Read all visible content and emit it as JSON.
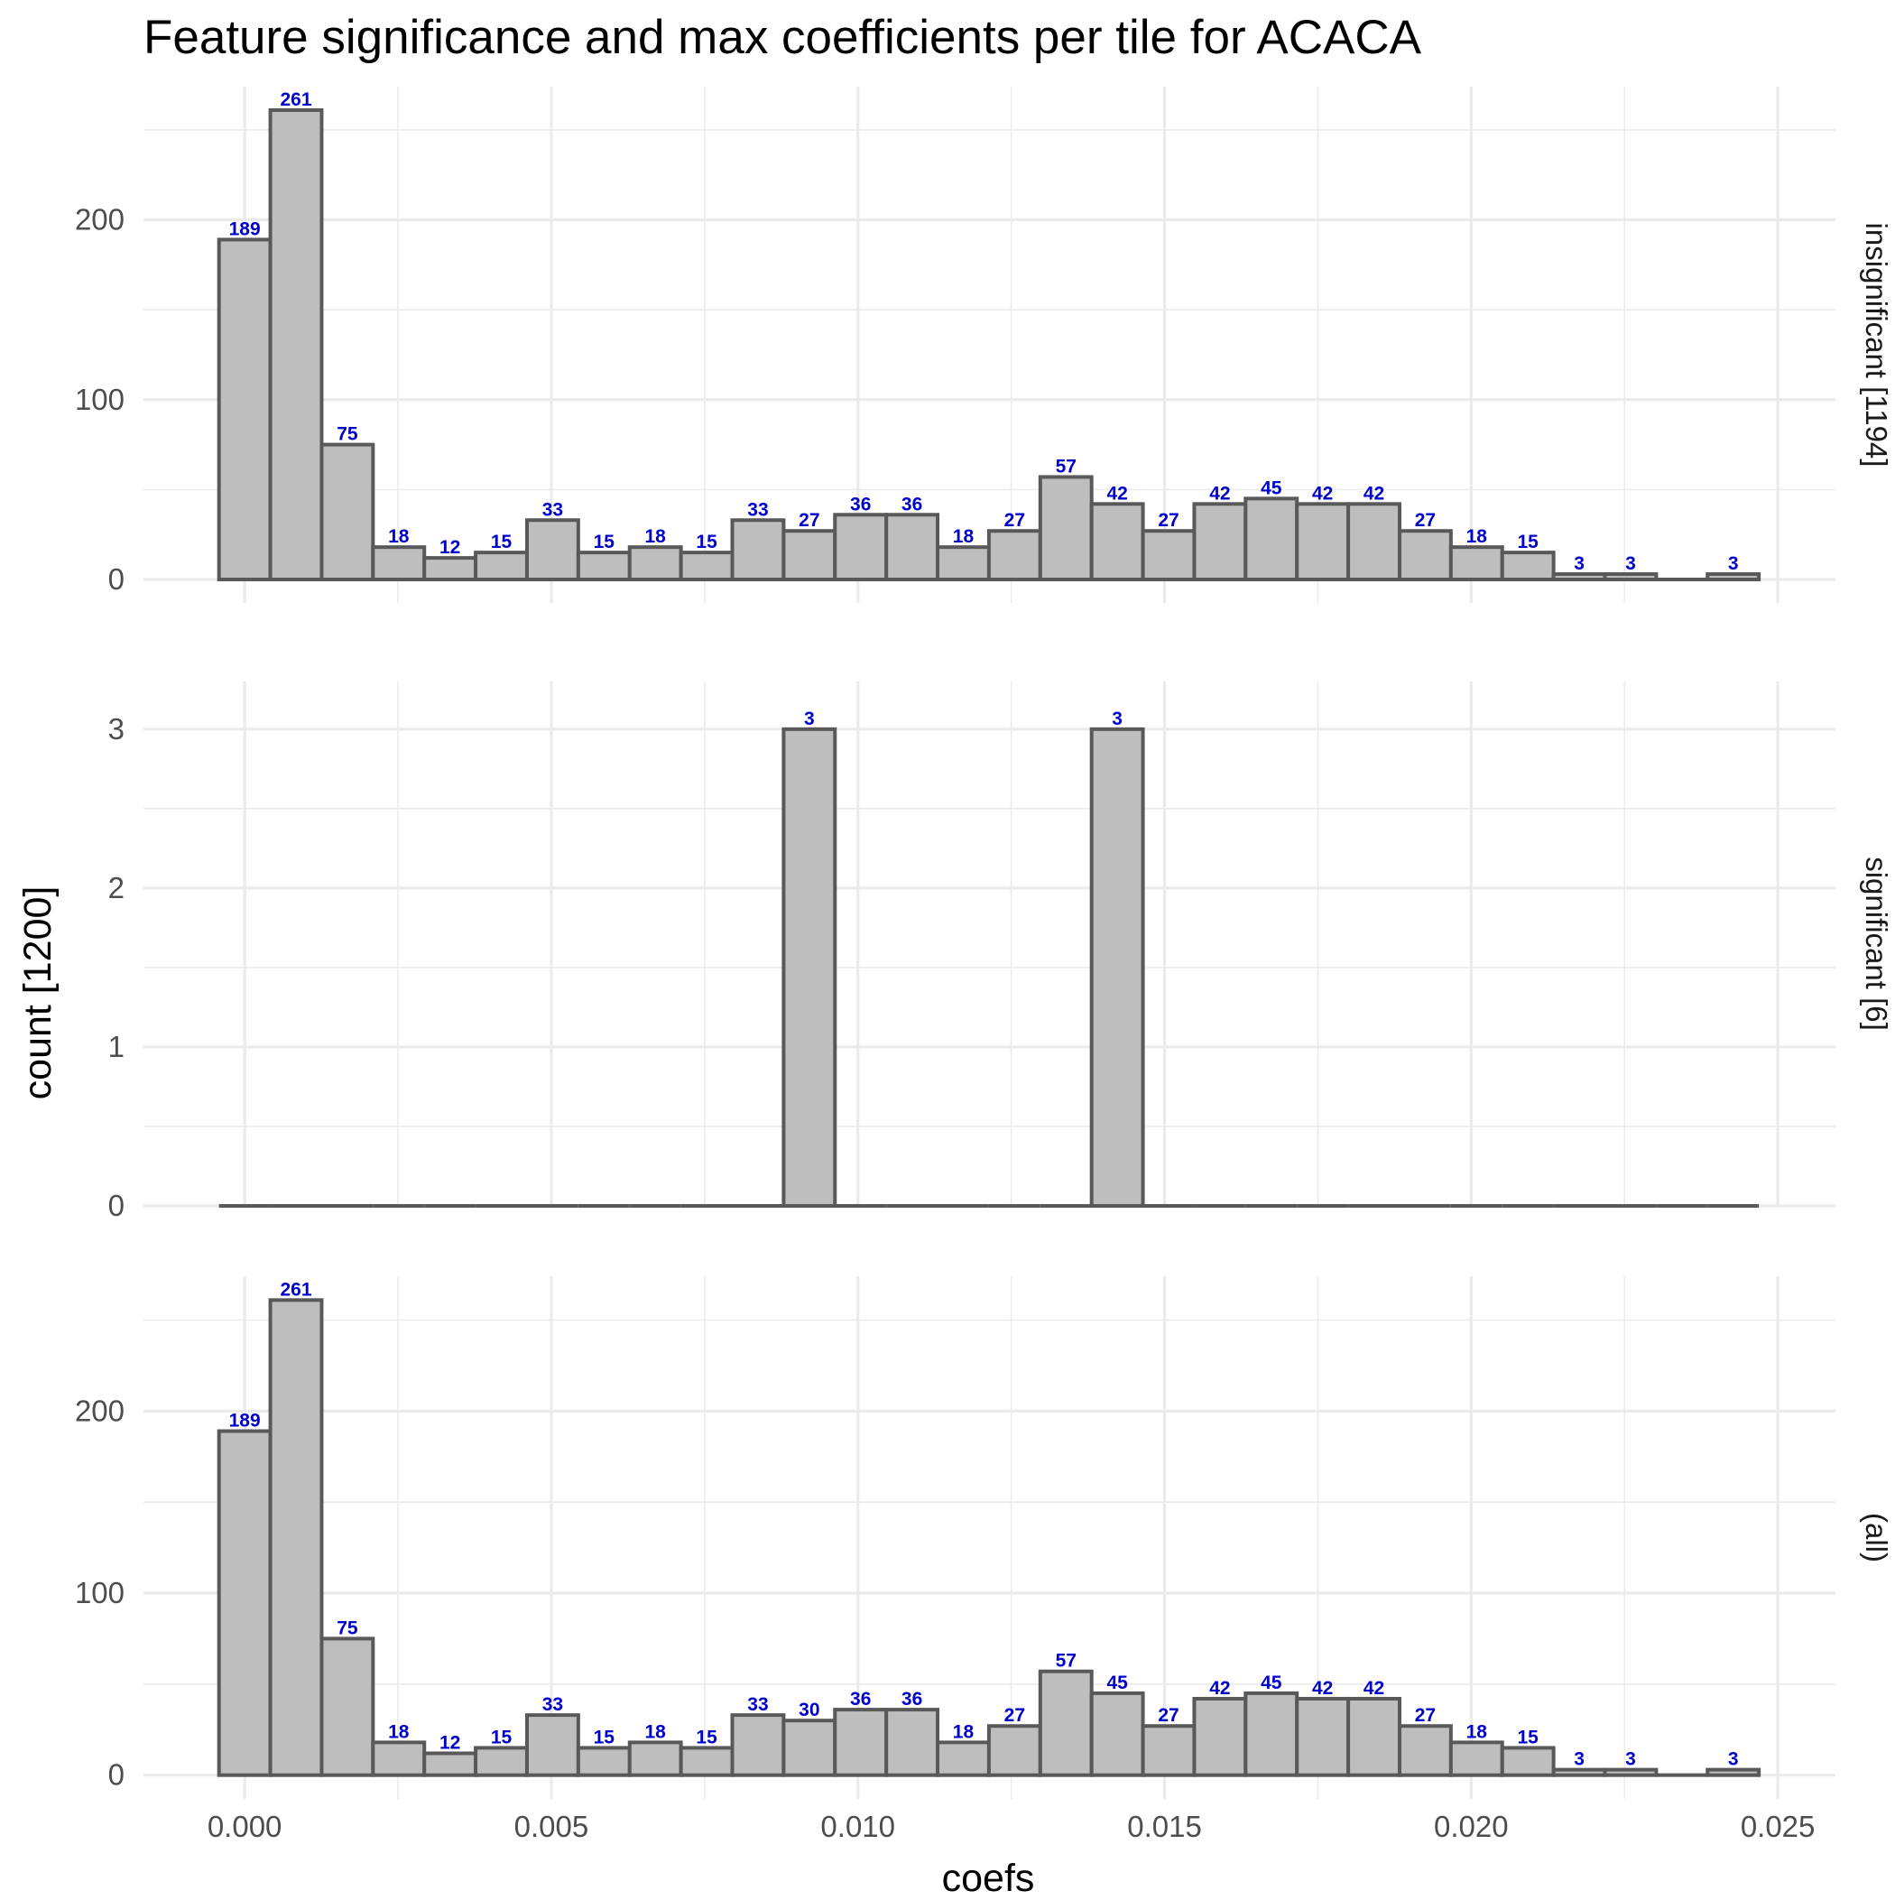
{
  "chart_data": {
    "type": "bar",
    "title": "Feature significance and max coefficients per tile for ACACA",
    "xlabel": "coefs",
    "ylabel": "count [1200]",
    "xlim": [
      -0.00165,
      0.02594
    ],
    "x_ticks": [
      "0.000",
      "0.005",
      "0.010",
      "0.015",
      "0.020",
      "0.025"
    ],
    "x_tick_values": [
      0,
      0.005,
      0.01,
      0.015,
      0.02,
      0.025
    ],
    "bin_width": 0.000837,
    "bin_centers": [
      0,
      0.000837,
      0.001674,
      0.002511,
      0.003348,
      0.004185,
      0.005022,
      0.005859,
      0.006696,
      0.007533,
      0.00837,
      0.009207,
      0.010044,
      0.010881,
      0.011718,
      0.012555,
      0.013392,
      0.014229,
      0.015066,
      0.015903,
      0.01674,
      0.017577,
      0.018414,
      0.019251,
      0.020088,
      0.020925,
      0.021762,
      0.022599,
      0.023436,
      0.024273
    ],
    "grid": true,
    "colors": {
      "bar_fill": "#bebebe",
      "bar_outline": "#595959",
      "data_label": "#0000cd",
      "grid": "#ebebeb"
    },
    "panels": [
      {
        "strip_label": "insignificant [1194]",
        "y_ticks": [
          "0",
          "100",
          "200"
        ],
        "y_tick_values": [
          0,
          100,
          200
        ],
        "ylim": [
          -13.05,
          274.05
        ],
        "values": [
          189,
          261,
          75,
          18,
          12,
          15,
          33,
          15,
          18,
          15,
          33,
          27,
          36,
          36,
          18,
          27,
          57,
          42,
          27,
          42,
          45,
          42,
          42,
          27,
          18,
          15,
          3,
          3,
          0,
          3
        ],
        "labels": [
          "189",
          "261",
          "75",
          "18",
          "12",
          "15",
          "33",
          "15",
          "18",
          "15",
          "33",
          "27",
          "36",
          "36",
          "18",
          "27",
          "57",
          "42",
          "27",
          "42",
          "45",
          "42",
          "42",
          "27",
          "18",
          "15",
          "3",
          "3",
          "",
          "3"
        ]
      },
      {
        "strip_label": "significant [6]",
        "y_ticks": [
          "0",
          "1",
          "2",
          "3"
        ],
        "y_tick_values": [
          0,
          1,
          2,
          3
        ],
        "ylim": [
          0,
          3.3
        ],
        "values": [
          0,
          0,
          0,
          0,
          0,
          0,
          0,
          0,
          0,
          0,
          0,
          3,
          0,
          0,
          0,
          0,
          0,
          3,
          0,
          0,
          0,
          0,
          0,
          0,
          0,
          0,
          0,
          0,
          0,
          0
        ],
        "labels": [
          "",
          "",
          "",
          "",
          "",
          "",
          "",
          "",
          "",
          "",
          "",
          "3",
          "",
          "",
          "",
          "",
          "",
          "3",
          "",
          "",
          "",
          "",
          "",
          "",
          "",
          "",
          "",
          "",
          "",
          ""
        ]
      },
      {
        "strip_label": "(all)",
        "y_ticks": [
          "0",
          "100",
          "200"
        ],
        "y_tick_values": [
          0,
          100,
          200
        ],
        "ylim": [
          -13.05,
          274.05
        ],
        "values": [
          189,
          261,
          75,
          18,
          12,
          15,
          33,
          15,
          18,
          15,
          33,
          30,
          36,
          36,
          18,
          27,
          57,
          45,
          27,
          42,
          45,
          42,
          42,
          27,
          18,
          15,
          3,
          3,
          0,
          3
        ],
        "labels": [
          "189",
          "261",
          "75",
          "18",
          "12",
          "15",
          "33",
          "15",
          "18",
          "15",
          "33",
          "30",
          "36",
          "36",
          "18",
          "27",
          "57",
          "45",
          "27",
          "42",
          "45",
          "42",
          "42",
          "27",
          "18",
          "15",
          "3",
          "3",
          "",
          "3"
        ]
      }
    ]
  }
}
